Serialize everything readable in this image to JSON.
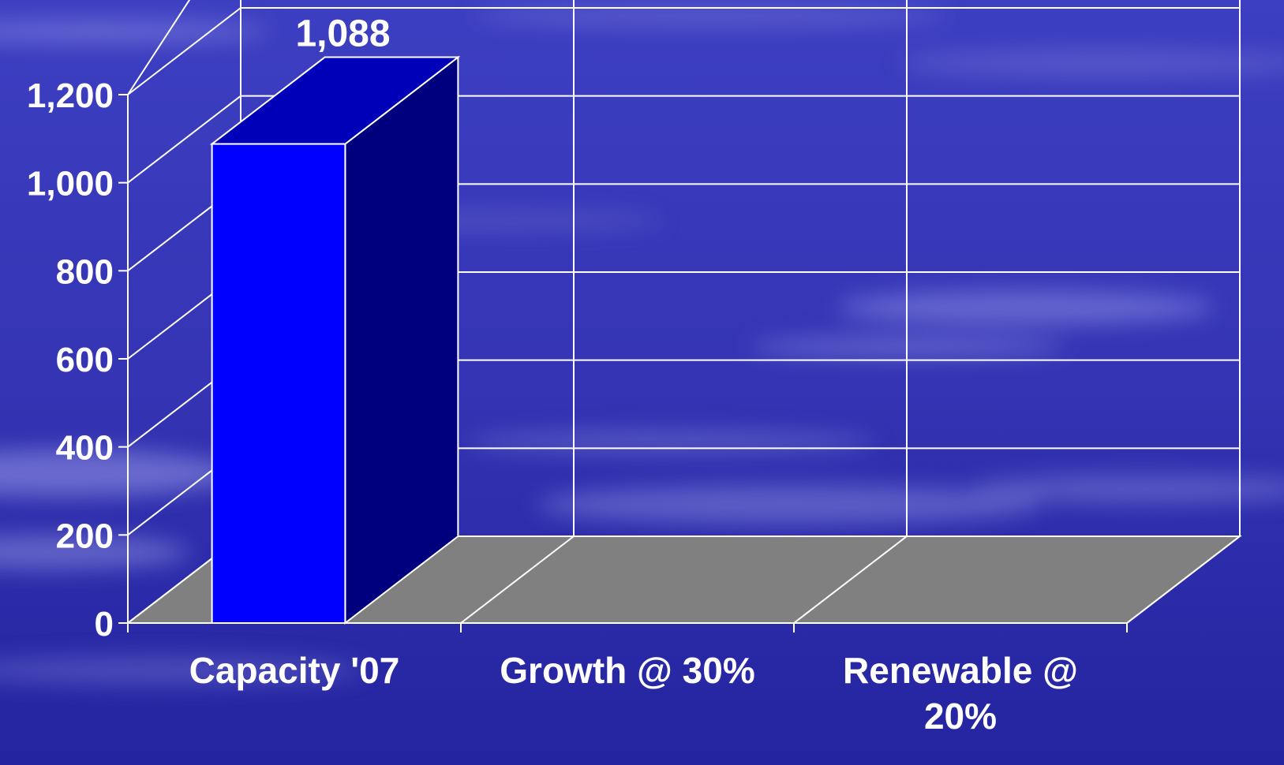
{
  "chart_data": {
    "type": "bar",
    "categories": [
      "Capacity '07",
      "Growth @ 30%",
      "Renewable @ 20%"
    ],
    "category_lines": [
      [
        "Capacity '07"
      ],
      [
        "Growth @ 30%"
      ],
      [
        "Renewable @",
        "20%"
      ]
    ],
    "values": [
      1088,
      null,
      null
    ],
    "data_labels": [
      "1,088",
      "",
      ""
    ],
    "title": "",
    "xlabel": "",
    "ylabel": "",
    "ylim": [
      0,
      1200
    ],
    "yticks": [
      0,
      200,
      400,
      600,
      800,
      1000,
      1200
    ],
    "ytick_labels": [
      "0",
      "200",
      "400",
      "600",
      "800",
      "1,000",
      "1,200"
    ],
    "grid": true,
    "three_d": true,
    "legend": "none"
  },
  "colors": {
    "background": "#2f2fae",
    "bar_front": "#0000ff",
    "bar_top": "#0000b8",
    "bar_side": "#00007e",
    "floor": "#808080",
    "grid": "#ffffff",
    "text": "#ffffff"
  }
}
